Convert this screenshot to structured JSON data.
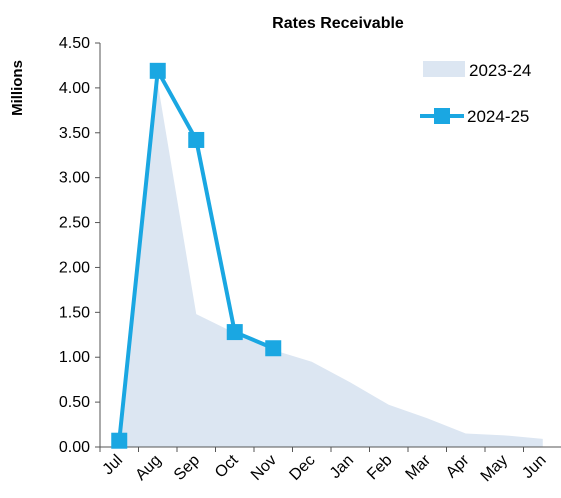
{
  "chart_data": {
    "type": "line",
    "title": "Rates Receivable",
    "xlabel": "",
    "ylabel": "Millions",
    "categories": [
      "Jul",
      "Aug",
      "Sep",
      "Oct",
      "Nov",
      "Dec",
      "Jan",
      "Feb",
      "Mar",
      "Apr",
      "May",
      "Jun"
    ],
    "y_ticks": [
      "0.00",
      "0.50",
      "1.00",
      "1.50",
      "2.00",
      "2.50",
      "3.00",
      "3.50",
      "4.00",
      "4.50"
    ],
    "ylim": [
      0,
      4.5
    ],
    "grid": false,
    "legend_position": "top-right",
    "series": [
      {
        "name": "2023-24",
        "style": "area",
        "color": "#dce6f2",
        "values": [
          0.0,
          4.05,
          1.48,
          1.27,
          1.08,
          0.95,
          0.72,
          0.47,
          0.32,
          0.15,
          0.13,
          0.09
        ]
      },
      {
        "name": "2024-25",
        "style": "line-marker",
        "color": "#1aa7e2",
        "values": [
          0.07,
          4.19,
          3.42,
          1.28,
          1.1,
          null,
          null,
          null,
          null,
          null,
          null,
          null
        ]
      }
    ]
  }
}
